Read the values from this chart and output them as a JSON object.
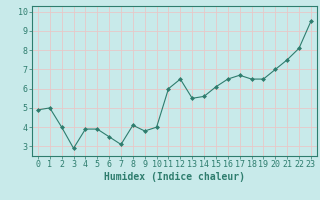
{
  "x": [
    0,
    1,
    2,
    3,
    4,
    5,
    6,
    7,
    8,
    9,
    10,
    11,
    12,
    13,
    14,
    15,
    16,
    17,
    18,
    19,
    20,
    21,
    22,
    23
  ],
  "y": [
    4.9,
    5.0,
    4.0,
    2.9,
    3.9,
    3.9,
    3.5,
    3.1,
    4.1,
    3.8,
    4.0,
    6.0,
    6.5,
    5.5,
    5.6,
    6.1,
    6.5,
    6.7,
    6.5,
    6.5,
    7.0,
    7.5,
    8.1,
    9.5
  ],
  "line_color": "#2e7d6e",
  "marker": "D",
  "marker_size": 2.0,
  "bg_color": "#c8eaea",
  "grid_color": "#e8c8c8",
  "xlabel": "Humidex (Indice chaleur)",
  "ylim": [
    2.5,
    10.3
  ],
  "xlim": [
    -0.5,
    23.5
  ],
  "yticks": [
    3,
    4,
    5,
    6,
    7,
    8,
    9,
    10
  ],
  "xticks": [
    0,
    1,
    2,
    3,
    4,
    5,
    6,
    7,
    8,
    9,
    10,
    11,
    12,
    13,
    14,
    15,
    16,
    17,
    18,
    19,
    20,
    21,
    22,
    23
  ],
  "tick_color": "#2e7d6e",
  "label_color": "#2e7d6e",
  "font_size": 6.0,
  "xlabel_font_size": 7.0,
  "line_width": 0.8
}
